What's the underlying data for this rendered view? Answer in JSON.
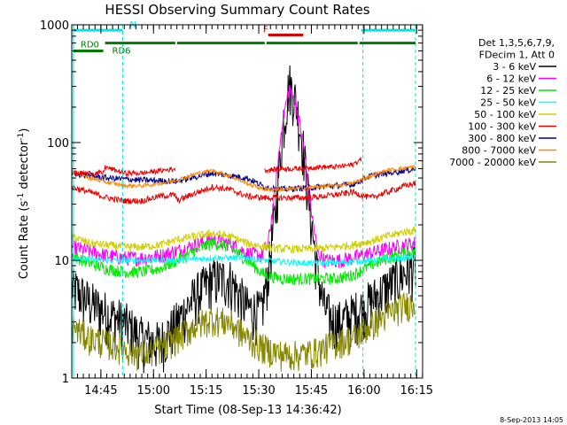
{
  "chart_data": {
    "type": "line",
    "title": "HESSI Observing Summary Count Rates",
    "xlabel": "Start Time (08-Sep-13 14:36:42)",
    "ylabel_main": "Count Rate (s",
    "ylabel_sup1": "-1",
    "ylabel_mid": " detector",
    "ylabel_sup2": "-1",
    "ylabel_end": ")",
    "xlim": [
      0,
      100
    ],
    "ylim": [
      1,
      1000
    ],
    "yscale": "log",
    "xticks": [
      {
        "label": "14:45",
        "x": 8.3
      },
      {
        "label": "15:00",
        "x": 23.3
      },
      {
        "label": "15:15",
        "x": 38.3
      },
      {
        "label": "15:30",
        "x": 53.3
      },
      {
        "label": "15:45",
        "x": 68.3
      },
      {
        "label": "16:00",
        "x": 83.3
      },
      {
        "label": "16:15",
        "x": 98.3
      }
    ],
    "yticks": [
      {
        "label": "1",
        "value": 1
      },
      {
        "label": "10",
        "value": 10
      },
      {
        "label": "100",
        "value": 100
      },
      {
        "label": "1000",
        "value": 1000
      }
    ],
    "legend_header": [
      "Det 1,3,5,6,7,9,",
      "FDecim 1, Att 0"
    ],
    "legend_position": "right",
    "timestamp": "8-Sep-2013 14:05",
    "flag_labels": {
      "n": "N",
      "f": "F",
      "rd0": "RD0",
      "rd6": "RD6"
    },
    "vlines_dashed": [
      14.5,
      83.0,
      98.0
    ],
    "vlines_solid": [
      0.5
    ],
    "flags": {
      "n": {
        "color": "#00e5e5",
        "segments": [
          [
            0.5,
            14.5
          ],
          [
            82.5,
            98.0
          ]
        ],
        "y": 900
      },
      "f": {
        "color": "#e00000",
        "segments": [
          [
            56.0,
            66.0
          ]
        ],
        "y": 820
      },
      "rd0": {
        "color": "#007a00",
        "segments": [
          [
            0.5,
            9.0
          ]
        ],
        "y": 600
      },
      "rd6": {
        "color": "#007a00",
        "segments": [
          [
            9.5,
            29.5
          ],
          [
            30.0,
            55.0
          ],
          [
            55.5,
            81.5
          ],
          [
            82.0,
            98.0
          ]
        ],
        "y": 700
      }
    },
    "series": [
      {
        "name": "3 - 6 keV",
        "color": "#000000",
        "noise": 0.5,
        "x": [
          0,
          5,
          10,
          15,
          20,
          25,
          30,
          35,
          40,
          45,
          50,
          54,
          56,
          58,
          60,
          62,
          64,
          66,
          68,
          70,
          72,
          74,
          76,
          80,
          85,
          90,
          95,
          98
        ],
        "y": [
          6,
          4.5,
          3.6,
          3,
          2.2,
          2,
          3,
          5,
          7,
          7,
          4,
          3.6,
          8,
          25,
          120,
          330,
          220,
          90,
          25,
          8,
          4,
          3.2,
          3,
          3.5,
          4.5,
          6,
          8,
          9
        ]
      },
      {
        "name": "6 - 12 keV",
        "color": "#ff00ff",
        "noise": 0.15,
        "x": [
          0,
          5,
          10,
          15,
          20,
          25,
          30,
          35,
          40,
          45,
          50,
          54,
          56,
          58,
          60,
          62,
          64,
          66,
          68,
          70,
          72,
          74,
          76,
          80,
          85,
          90,
          95,
          98
        ],
        "y": [
          13,
          12,
          11,
          10.5,
          10.5,
          11,
          12,
          13.5,
          15,
          14,
          11.5,
          11,
          14,
          40,
          150,
          290,
          210,
          95,
          30,
          12,
          10,
          10,
          10,
          10.5,
          11.5,
          12.5,
          13.5,
          14
        ]
      },
      {
        "name": "12 - 25 keV",
        "color": "#00ee00",
        "noise": 0.12,
        "x": [
          0,
          5,
          10,
          15,
          20,
          25,
          30,
          35,
          40,
          45,
          50,
          55,
          60,
          65,
          70,
          75,
          80,
          85,
          90,
          95,
          98
        ],
        "y": [
          11,
          9.5,
          8.5,
          8,
          8,
          8.5,
          10,
          12,
          14,
          13,
          10,
          7.5,
          7,
          7,
          7,
          7,
          7.5,
          9,
          10.5,
          11.5,
          12
        ]
      },
      {
        "name": "25 - 50 keV",
        "color": "#00ffff",
        "noise": 0.06,
        "x": [
          0,
          10,
          20,
          30,
          40,
          50,
          55,
          65,
          75,
          85,
          95,
          98
        ],
        "y": [
          10.5,
          10,
          10,
          10,
          10.5,
          10.5,
          10,
          9.5,
          9.5,
          10,
          10.5,
          10.5
        ]
      },
      {
        "name": "50 - 100 keV",
        "color": "#d0d000",
        "noise": 0.08,
        "x": [
          0,
          5,
          10,
          15,
          20,
          25,
          30,
          35,
          40,
          45,
          50,
          55,
          60,
          65,
          70,
          75,
          80,
          85,
          90,
          95,
          98
        ],
        "y": [
          16,
          14,
          13.5,
          13,
          13,
          13.5,
          15,
          16,
          17,
          16,
          14,
          13,
          12.5,
          12.5,
          12.5,
          13,
          13.5,
          14.5,
          16,
          17.5,
          18
        ]
      },
      {
        "name": "100 - 300 keV",
        "color": "#ee0000",
        "noise": 0.06,
        "x": [
          0,
          5,
          10,
          15,
          20,
          25,
          29.5,
          30,
          35,
          40,
          45,
          50,
          55,
          60,
          65,
          70,
          75,
          80,
          85,
          90,
          95,
          98
        ],
        "y": [
          42,
          38,
          34,
          32,
          32,
          35,
          36,
          32,
          37,
          42,
          40,
          35,
          34,
          34,
          34,
          34.5,
          36,
          38,
          34,
          38,
          43,
          45
        ]
      },
      {
        "name": "300 - 800 keV",
        "color": "#000090",
        "noise": 0.06,
        "x": [
          0,
          10,
          20,
          30,
          40,
          50,
          55,
          60,
          70,
          80,
          85,
          90,
          95,
          98
        ],
        "y": [
          55,
          50,
          48,
          47,
          55,
          50,
          42,
          40,
          42,
          44,
          52,
          55,
          58,
          60
        ]
      },
      {
        "name": "800 - 7000 keV",
        "color": "#ff8800",
        "noise": 0.04,
        "x": [
          0,
          5,
          10,
          15,
          20,
          25,
          30,
          35,
          40,
          45,
          50,
          55,
          60,
          65,
          70,
          75,
          80,
          85,
          90,
          95,
          98
        ],
        "y": [
          58,
          50,
          46,
          43,
          43,
          45,
          48,
          54,
          58,
          52,
          45,
          40,
          40,
          41,
          42,
          43,
          45,
          52,
          58,
          61,
          62
        ]
      },
      {
        "name": "7000 - 20000 keV",
        "color": "#888800",
        "noise": 0.3,
        "x": [
          0,
          5,
          10,
          15,
          20,
          25,
          30,
          35,
          40,
          45,
          50,
          55,
          60,
          65,
          70,
          75,
          80,
          85,
          90,
          95,
          98
        ],
        "y": [
          2.8,
          2.2,
          2,
          1.8,
          1.6,
          1.8,
          2.2,
          2.8,
          3.2,
          3,
          2.2,
          1.8,
          1.6,
          1.6,
          1.7,
          2,
          2.2,
          2.8,
          3.5,
          4.2,
          4.4
        ]
      },
      {
        "name": "100 - 300 keV (attenuated)",
        "color": "#ee0000",
        "noise": 0.05,
        "hidden_legend": true,
        "x": [
          0,
          9,
          9.5,
          15,
          20,
          29.5
        ],
        "y": [
          55,
          55,
          62,
          55,
          55,
          60
        ]
      },
      {
        "name": "100 - 300 keV (flare)",
        "color": "#ee0000",
        "noise": 0.05,
        "hidden_legend": true,
        "x": [
          55,
          60,
          65,
          70,
          75,
          80,
          82.5
        ],
        "y": [
          58,
          60,
          60,
          62,
          62,
          65,
          72
        ]
      }
    ]
  }
}
